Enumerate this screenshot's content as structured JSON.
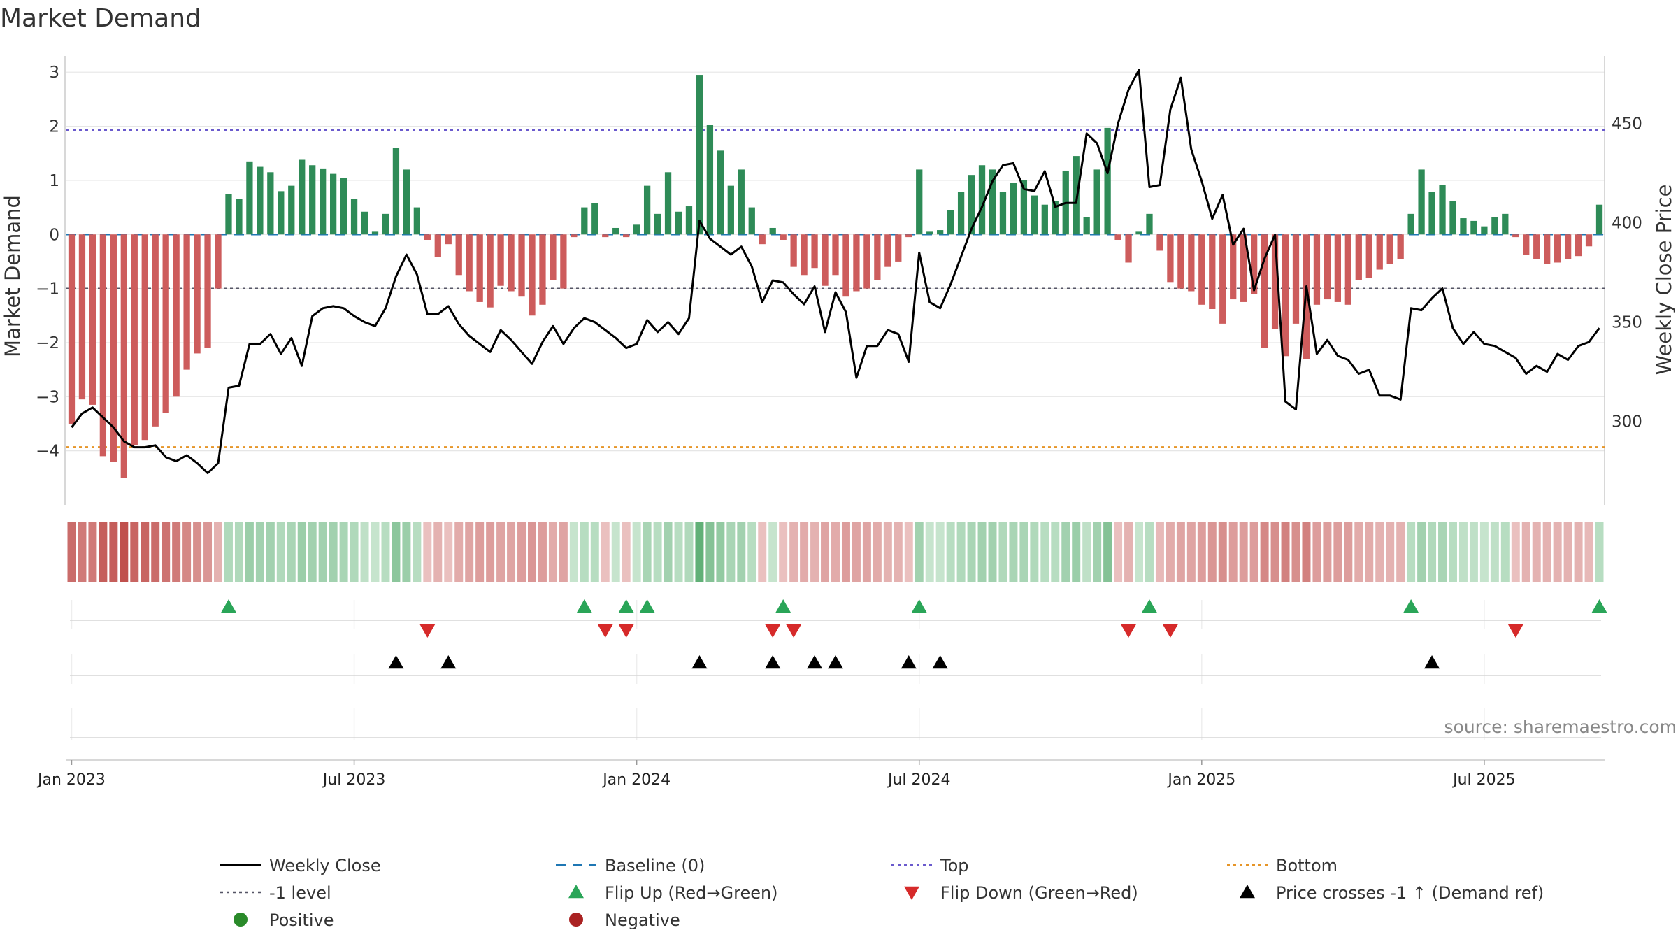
{
  "chart_data": {
    "type": "bar",
    "title": "Market Demand",
    "ylabel_left": "Market Demand",
    "ylabel_right": "Weekly Close Price",
    "y_left_ticks": [
      3,
      2,
      1,
      0,
      -1,
      -2,
      -3,
      -4
    ],
    "y_left_tick_labels": [
      "3",
      "2",
      "1",
      "0",
      "−1",
      "−2",
      "−3",
      "−4"
    ],
    "y_right_ticks": [
      450,
      400,
      350,
      300
    ],
    "y_right_tick_labels": [
      "450",
      "400",
      "350",
      "300"
    ],
    "ylim_left": [
      -5,
      3.3
    ],
    "ylim_right": [
      258,
      484
    ],
    "x_ticks": [
      "Jan 2023",
      "Jul 2023",
      "Jan 2024",
      "Jul 2024",
      "Jan 2025",
      "Jul 2025"
    ],
    "x_tick_weeks": [
      1,
      28,
      55,
      82,
      109,
      136
    ],
    "levels": {
      "top": 1.93,
      "bottom": -3.93,
      "minus_one": -1,
      "baseline": 0
    },
    "demand": [
      -3.5,
      -3.05,
      -3.15,
      -4.1,
      -4.2,
      -4.5,
      -3.9,
      -3.8,
      -3.55,
      -3.3,
      -3.0,
      -2.5,
      -2.2,
      -2.1,
      -1.0,
      0.75,
      0.65,
      1.35,
      1.25,
      1.15,
      0.8,
      0.9,
      1.38,
      1.28,
      1.22,
      1.12,
      1.05,
      0.65,
      0.42,
      0.05,
      0.38,
      1.6,
      1.2,
      0.5,
      -0.1,
      -0.42,
      -0.18,
      -0.75,
      -1.05,
      -1.25,
      -1.35,
      -0.95,
      -1.05,
      -1.15,
      -1.5,
      -1.3,
      -0.85,
      -1.0,
      -0.05,
      0.5,
      0.58,
      -0.05,
      0.12,
      -0.05,
      0.18,
      0.9,
      0.38,
      1.15,
      0.42,
      0.52,
      2.95,
      2.02,
      1.55,
      0.9,
      1.2,
      0.5,
      -0.18,
      0.12,
      -0.1,
      -0.6,
      -0.75,
      -0.62,
      -0.95,
      -0.75,
      -1.15,
      -1.05,
      -1.0,
      -0.85,
      -0.6,
      -0.5,
      -0.05,
      1.2,
      0.05,
      0.08,
      0.45,
      0.78,
      1.1,
      1.28,
      1.2,
      0.78,
      0.95,
      1.0,
      0.72,
      0.55,
      0.62,
      1.18,
      1.45,
      0.32,
      1.2,
      1.97,
      -0.1,
      -0.52,
      0.05,
      0.38,
      -0.3,
      -0.88,
      -1.0,
      -1.05,
      -1.3,
      -1.38,
      -1.65,
      -1.2,
      -1.25,
      -1.1,
      -2.1,
      -1.75,
      -2.25,
      -1.65,
      -2.3,
      -1.3,
      -1.2,
      -1.25,
      -1.3,
      -0.85,
      -0.8,
      -0.65,
      -0.55,
      -0.45,
      0.38,
      1.2,
      0.78,
      0.92,
      0.62,
      0.3,
      0.25,
      0.15,
      0.32,
      0.38,
      -0.05,
      -0.38,
      -0.45,
      -0.55,
      -0.52,
      -0.45,
      -0.4,
      -0.22,
      0.55
    ],
    "weekly_close": [
      297,
      304,
      307,
      302,
      297,
      290,
      287,
      287,
      288,
      282,
      280,
      283,
      279,
      274,
      279,
      317,
      318,
      339,
      339,
      344,
      334,
      342,
      328,
      353,
      357,
      358,
      357,
      353,
      350,
      348,
      357,
      373,
      384,
      374,
      354,
      354,
      358,
      349,
      343,
      339,
      335,
      346,
      341,
      335,
      329,
      340,
      348,
      339,
      347,
      352,
      350,
      346,
      342,
      337,
      339,
      351,
      345,
      350,
      344,
      352,
      401,
      392,
      388,
      384,
      388,
      378,
      360,
      371,
      370,
      364,
      359,
      368,
      345,
      365,
      355,
      322,
      338,
      338,
      346,
      344,
      330,
      385,
      360,
      357,
      369,
      383,
      397,
      408,
      421,
      429,
      430,
      417,
      416,
      426,
      408,
      410,
      410,
      445,
      440,
      425,
      450,
      467,
      477,
      418,
      419,
      457,
      473,
      437,
      421,
      402,
      414,
      389,
      397,
      366,
      382,
      394,
      310,
      306,
      368,
      334,
      341,
      333,
      331,
      324,
      326,
      313,
      313,
      311,
      357,
      356,
      362,
      367,
      347,
      339,
      345,
      339,
      338,
      335,
      332,
      324,
      328,
      325,
      334,
      331,
      338,
      340,
      347
    ],
    "state_intensity": [
      -0.8,
      -0.7,
      -0.7,
      -0.9,
      -0.9,
      -1.0,
      -0.85,
      -0.85,
      -0.8,
      -0.75,
      -0.7,
      -0.6,
      -0.55,
      -0.5,
      -0.3,
      0.35,
      0.35,
      0.5,
      0.45,
      0.45,
      0.35,
      0.4,
      0.5,
      0.45,
      0.45,
      0.45,
      0.4,
      0.35,
      0.25,
      0.2,
      0.3,
      0.6,
      0.5,
      0.3,
      -0.2,
      -0.3,
      -0.2,
      -0.35,
      -0.4,
      -0.45,
      -0.45,
      -0.4,
      -0.4,
      -0.45,
      -0.5,
      -0.45,
      -0.35,
      -0.4,
      0.2,
      0.3,
      0.3,
      -0.2,
      0.2,
      -0.2,
      0.2,
      0.4,
      0.3,
      0.45,
      0.3,
      0.35,
      0.9,
      0.65,
      0.55,
      0.4,
      0.45,
      0.3,
      -0.2,
      0.2,
      -0.2,
      -0.3,
      -0.35,
      -0.3,
      -0.4,
      -0.35,
      -0.45,
      -0.4,
      -0.4,
      -0.35,
      -0.3,
      -0.3,
      -0.2,
      0.45,
      0.2,
      0.2,
      0.3,
      0.35,
      0.4,
      0.45,
      0.45,
      0.35,
      0.4,
      0.4,
      0.35,
      0.3,
      0.3,
      0.45,
      0.5,
      0.25,
      0.45,
      0.65,
      -0.2,
      -0.3,
      0.2,
      0.3,
      -0.25,
      -0.35,
      -0.4,
      -0.4,
      -0.45,
      -0.5,
      -0.55,
      -0.45,
      -0.45,
      -0.45,
      -0.6,
      -0.55,
      -0.65,
      -0.55,
      -0.65,
      -0.45,
      -0.45,
      -0.45,
      -0.45,
      -0.35,
      -0.35,
      -0.3,
      -0.3,
      -0.3,
      0.3,
      0.45,
      0.35,
      0.4,
      0.3,
      0.25,
      0.25,
      0.2,
      0.25,
      0.3,
      -0.2,
      -0.3,
      -0.3,
      -0.3,
      -0.3,
      -0.3,
      -0.3,
      -0.25,
      0.3
    ],
    "flip_up_weeks": [
      16,
      50,
      54,
      56,
      69,
      82,
      104,
      129,
      147
    ],
    "flip_down_weeks": [
      35,
      52,
      54,
      68,
      70,
      102,
      106,
      139
    ],
    "price_cross_weeks": [
      32,
      37,
      61,
      68,
      72,
      74,
      81,
      84,
      131
    ],
    "source": "source: sharemaestro.com",
    "legend": [
      {
        "label": "Weekly Close",
        "color": "#000000",
        "marker": "line"
      },
      {
        "label": "Baseline (0)",
        "color": "#1f77b4",
        "marker": "dashed"
      },
      {
        "label": "Top",
        "color": "#6a5acd",
        "marker": "dotted"
      },
      {
        "label": "Bottom",
        "color": "#e69528",
        "marker": "dotted"
      },
      {
        "label": "-1 level",
        "color": "#555566",
        "marker": "dotted"
      },
      {
        "label": "Flip Up (Red→Green)",
        "color": "#2aa558",
        "marker": "tri-up"
      },
      {
        "label": "Flip Down (Green→Red)",
        "color": "#d62a2a",
        "marker": "tri-down"
      },
      {
        "label": "Price crosses -1 ↑ (Demand ref)",
        "color": "#000000",
        "marker": "tri-up"
      },
      {
        "label": "Positive",
        "color": "#2a8a2a",
        "marker": "circle"
      },
      {
        "label": "Negative",
        "color": "#aa2222",
        "marker": "circle"
      }
    ],
    "colors": {
      "positive": "#2e8b57",
      "negative": "#cd5c5c",
      "grid": "#e6e6e6",
      "axis": "#cccccc"
    }
  }
}
